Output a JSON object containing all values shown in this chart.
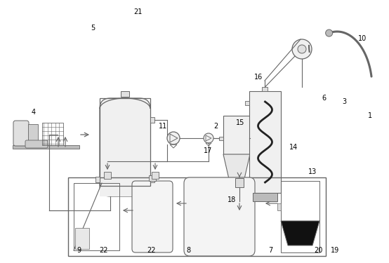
{
  "bg_color": "#ffffff",
  "lc": "#666666",
  "lc_dark": "#333333"
}
